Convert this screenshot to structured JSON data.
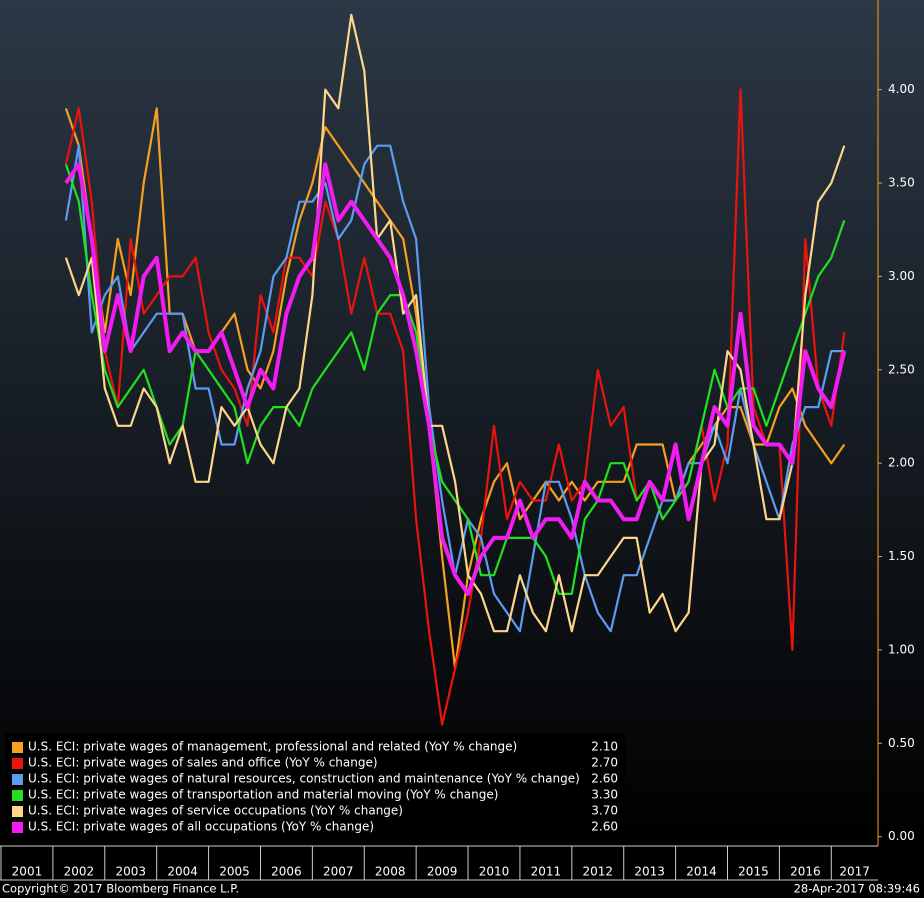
{
  "chart_data": {
    "type": "line",
    "x": [
      2002.25,
      2002.5,
      2002.75,
      2003,
      2003.25,
      2003.5,
      2003.75,
      2004,
      2004.25,
      2004.5,
      2004.75,
      2005,
      2005.25,
      2005.5,
      2005.75,
      2006,
      2006.25,
      2006.5,
      2006.75,
      2007,
      2007.25,
      2007.5,
      2007.75,
      2008,
      2008.25,
      2008.5,
      2008.75,
      2009,
      2009.25,
      2009.5,
      2009.75,
      2010,
      2010.25,
      2010.5,
      2010.75,
      2011,
      2011.25,
      2011.5,
      2011.75,
      2012,
      2012.25,
      2012.5,
      2012.75,
      2013,
      2013.25,
      2013.5,
      2013.75,
      2014,
      2014.25,
      2014.5,
      2014.75,
      2015,
      2015.25,
      2015.5,
      2015.75,
      2016,
      2016.25,
      2016.5,
      2016.75,
      2017,
      2017.25
    ],
    "xlim": [
      2001,
      2017.9
    ],
    "xticks": [
      2001,
      2002,
      2003,
      2004,
      2005,
      2006,
      2007,
      2008,
      2009,
      2010,
      2011,
      2012,
      2013,
      2014,
      2015,
      2016,
      2017
    ],
    "ylim": [
      -0.05,
      4.48
    ],
    "yticks": [
      {
        "value": 0,
        "label": "0.00"
      },
      {
        "value": 0.5,
        "label": "0.50"
      },
      {
        "value": 1,
        "label": "1.00"
      },
      {
        "value": 1.5,
        "label": "1.50"
      },
      {
        "value": 2,
        "label": "2.00"
      },
      {
        "value": 2.5,
        "label": "2.50"
      },
      {
        "value": 3,
        "label": "3.00"
      },
      {
        "value": 3.5,
        "label": "3.50"
      },
      {
        "value": 4,
        "label": "4.00"
      }
    ],
    "legend": "lower left",
    "series": [
      {
        "name": "U.S. ECI: private wages of management, professional and related (YoY % change)",
        "color": "#f5a020",
        "last_value_label": "2.10",
        "values": [
          3.9,
          3.7,
          3.2,
          2.7,
          3.2,
          2.9,
          3.5,
          3.9,
          2.8,
          2.8,
          2.6,
          2.6,
          2.7,
          2.8,
          2.5,
          2.4,
          2.6,
          3.0,
          3.3,
          3.5,
          3.8,
          3.7,
          3.6,
          3.5,
          3.4,
          3.3,
          3.2,
          2.8,
          2.2,
          1.5,
          0.9,
          1.4,
          1.7,
          1.9,
          2.0,
          1.7,
          1.8,
          1.9,
          1.8,
          1.9,
          1.8,
          1.9,
          1.9,
          1.9,
          2.1,
          2.1,
          2.1,
          1.8,
          2.0,
          2.1,
          2.2,
          2.3,
          2.3,
          2.1,
          2.1,
          2.3,
          2.4,
          2.2,
          2.1,
          2.0,
          2.1
        ]
      },
      {
        "name": "U.S. ECI: private wages of sales and office (YoY % change)",
        "color": "#e8140e",
        "last_value_label": "2.70",
        "values": [
          3.6,
          3.9,
          3.4,
          2.6,
          2.3,
          3.2,
          2.8,
          2.9,
          3.0,
          3.0,
          3.1,
          2.7,
          2.5,
          2.4,
          2.2,
          2.9,
          2.7,
          3.1,
          3.1,
          3.0,
          3.4,
          3.2,
          2.8,
          3.1,
          2.8,
          2.8,
          2.6,
          1.7,
          1.1,
          0.6,
          0.9,
          1.2,
          1.6,
          2.2,
          1.7,
          1.9,
          1.8,
          1.8,
          2.1,
          1.8,
          1.9,
          2.5,
          2.2,
          2.3,
          1.8,
          1.9,
          1.8,
          1.8,
          1.9,
          2.2,
          1.8,
          2.1,
          4.0,
          2.3,
          2.1,
          2.1,
          1.0,
          3.2,
          2.4,
          2.2,
          2.7
        ]
      },
      {
        "name": "U.S. ECI: private wages of natural resources, construction and maintenance (YoY % change)",
        "color": "#5c9cf0",
        "last_value_label": "2.60",
        "values": [
          3.3,
          3.7,
          2.7,
          2.9,
          3.0,
          2.6,
          2.7,
          2.8,
          2.8,
          2.8,
          2.4,
          2.4,
          2.1,
          2.1,
          2.4,
          2.6,
          3.0,
          3.1,
          3.4,
          3.4,
          3.5,
          3.2,
          3.3,
          3.6,
          3.7,
          3.7,
          3.4,
          3.2,
          2.3,
          1.8,
          1.4,
          1.7,
          1.6,
          1.3,
          1.2,
          1.1,
          1.5,
          1.9,
          1.9,
          1.7,
          1.4,
          1.2,
          1.1,
          1.4,
          1.4,
          1.6,
          1.8,
          1.8,
          2.0,
          2.0,
          2.2,
          2.0,
          2.4,
          2.1,
          1.9,
          1.7,
          2.1,
          2.3,
          2.3,
          2.6,
          2.6
        ]
      },
      {
        "name": "U.S. ECI: private wages of transportation and material moving (YoY % change)",
        "color": "#20e020",
        "last_value_label": "3.30",
        "values": [
          3.6,
          3.4,
          2.9,
          2.5,
          2.3,
          2.4,
          2.5,
          2.3,
          2.1,
          2.2,
          2.6,
          2.5,
          2.4,
          2.3,
          2.0,
          2.2,
          2.3,
          2.3,
          2.2,
          2.4,
          2.5,
          2.6,
          2.7,
          2.5,
          2.8,
          2.9,
          2.9,
          2.7,
          2.2,
          1.9,
          1.8,
          1.7,
          1.4,
          1.4,
          1.6,
          1.6,
          1.6,
          1.5,
          1.3,
          1.3,
          1.7,
          1.8,
          2.0,
          2.0,
          1.8,
          1.9,
          1.7,
          1.8,
          1.9,
          2.2,
          2.5,
          2.3,
          2.4,
          2.4,
          2.2,
          2.4,
          2.6,
          2.8,
          3.0,
          3.1,
          3.3
        ]
      },
      {
        "name": "U.S. ECI: private wages of service occupations (YoY % change)",
        "color": "#fdd68a",
        "last_value_label": "3.70",
        "values": [
          3.1,
          2.9,
          3.1,
          2.4,
          2.2,
          2.2,
          2.4,
          2.3,
          2.0,
          2.2,
          1.9,
          1.9,
          2.3,
          2.2,
          2.3,
          2.1,
          2.0,
          2.3,
          2.4,
          2.9,
          4.0,
          3.9,
          4.4,
          4.1,
          3.2,
          3.3,
          2.8,
          2.9,
          2.2,
          2.2,
          1.9,
          1.4,
          1.3,
          1.1,
          1.1,
          1.4,
          1.2,
          1.1,
          1.4,
          1.1,
          1.4,
          1.4,
          1.5,
          1.6,
          1.6,
          1.2,
          1.3,
          1.1,
          1.2,
          2.0,
          2.1,
          2.6,
          2.5,
          2.1,
          1.7,
          1.7,
          2.0,
          2.9,
          3.4,
          3.5,
          3.7
        ]
      },
      {
        "name": "U.S. ECI: private wages of all occupations (YoY % change)",
        "color": "#f01cf0",
        "last_value_label": "2.60",
        "values": [
          3.5,
          3.6,
          3.2,
          2.6,
          2.9,
          2.6,
          3.0,
          3.1,
          2.6,
          2.7,
          2.6,
          2.6,
          2.7,
          2.5,
          2.3,
          2.5,
          2.4,
          2.8,
          3.0,
          3.1,
          3.6,
          3.3,
          3.4,
          3.3,
          3.2,
          3.1,
          2.9,
          2.6,
          2.2,
          1.6,
          1.4,
          1.3,
          1.5,
          1.6,
          1.6,
          1.8,
          1.6,
          1.7,
          1.7,
          1.6,
          1.9,
          1.8,
          1.8,
          1.7,
          1.7,
          1.9,
          1.8,
          2.1,
          1.7,
          2.0,
          2.3,
          2.2,
          2.8,
          2.2,
          2.1,
          2.1,
          2.0,
          2.6,
          2.4,
          2.3,
          2.6
        ]
      }
    ]
  },
  "footer": {
    "copyright": "Copyright© 2017 Bloomberg Finance L.P.",
    "timestamp": "28-Apr-2017 08:39:46"
  }
}
